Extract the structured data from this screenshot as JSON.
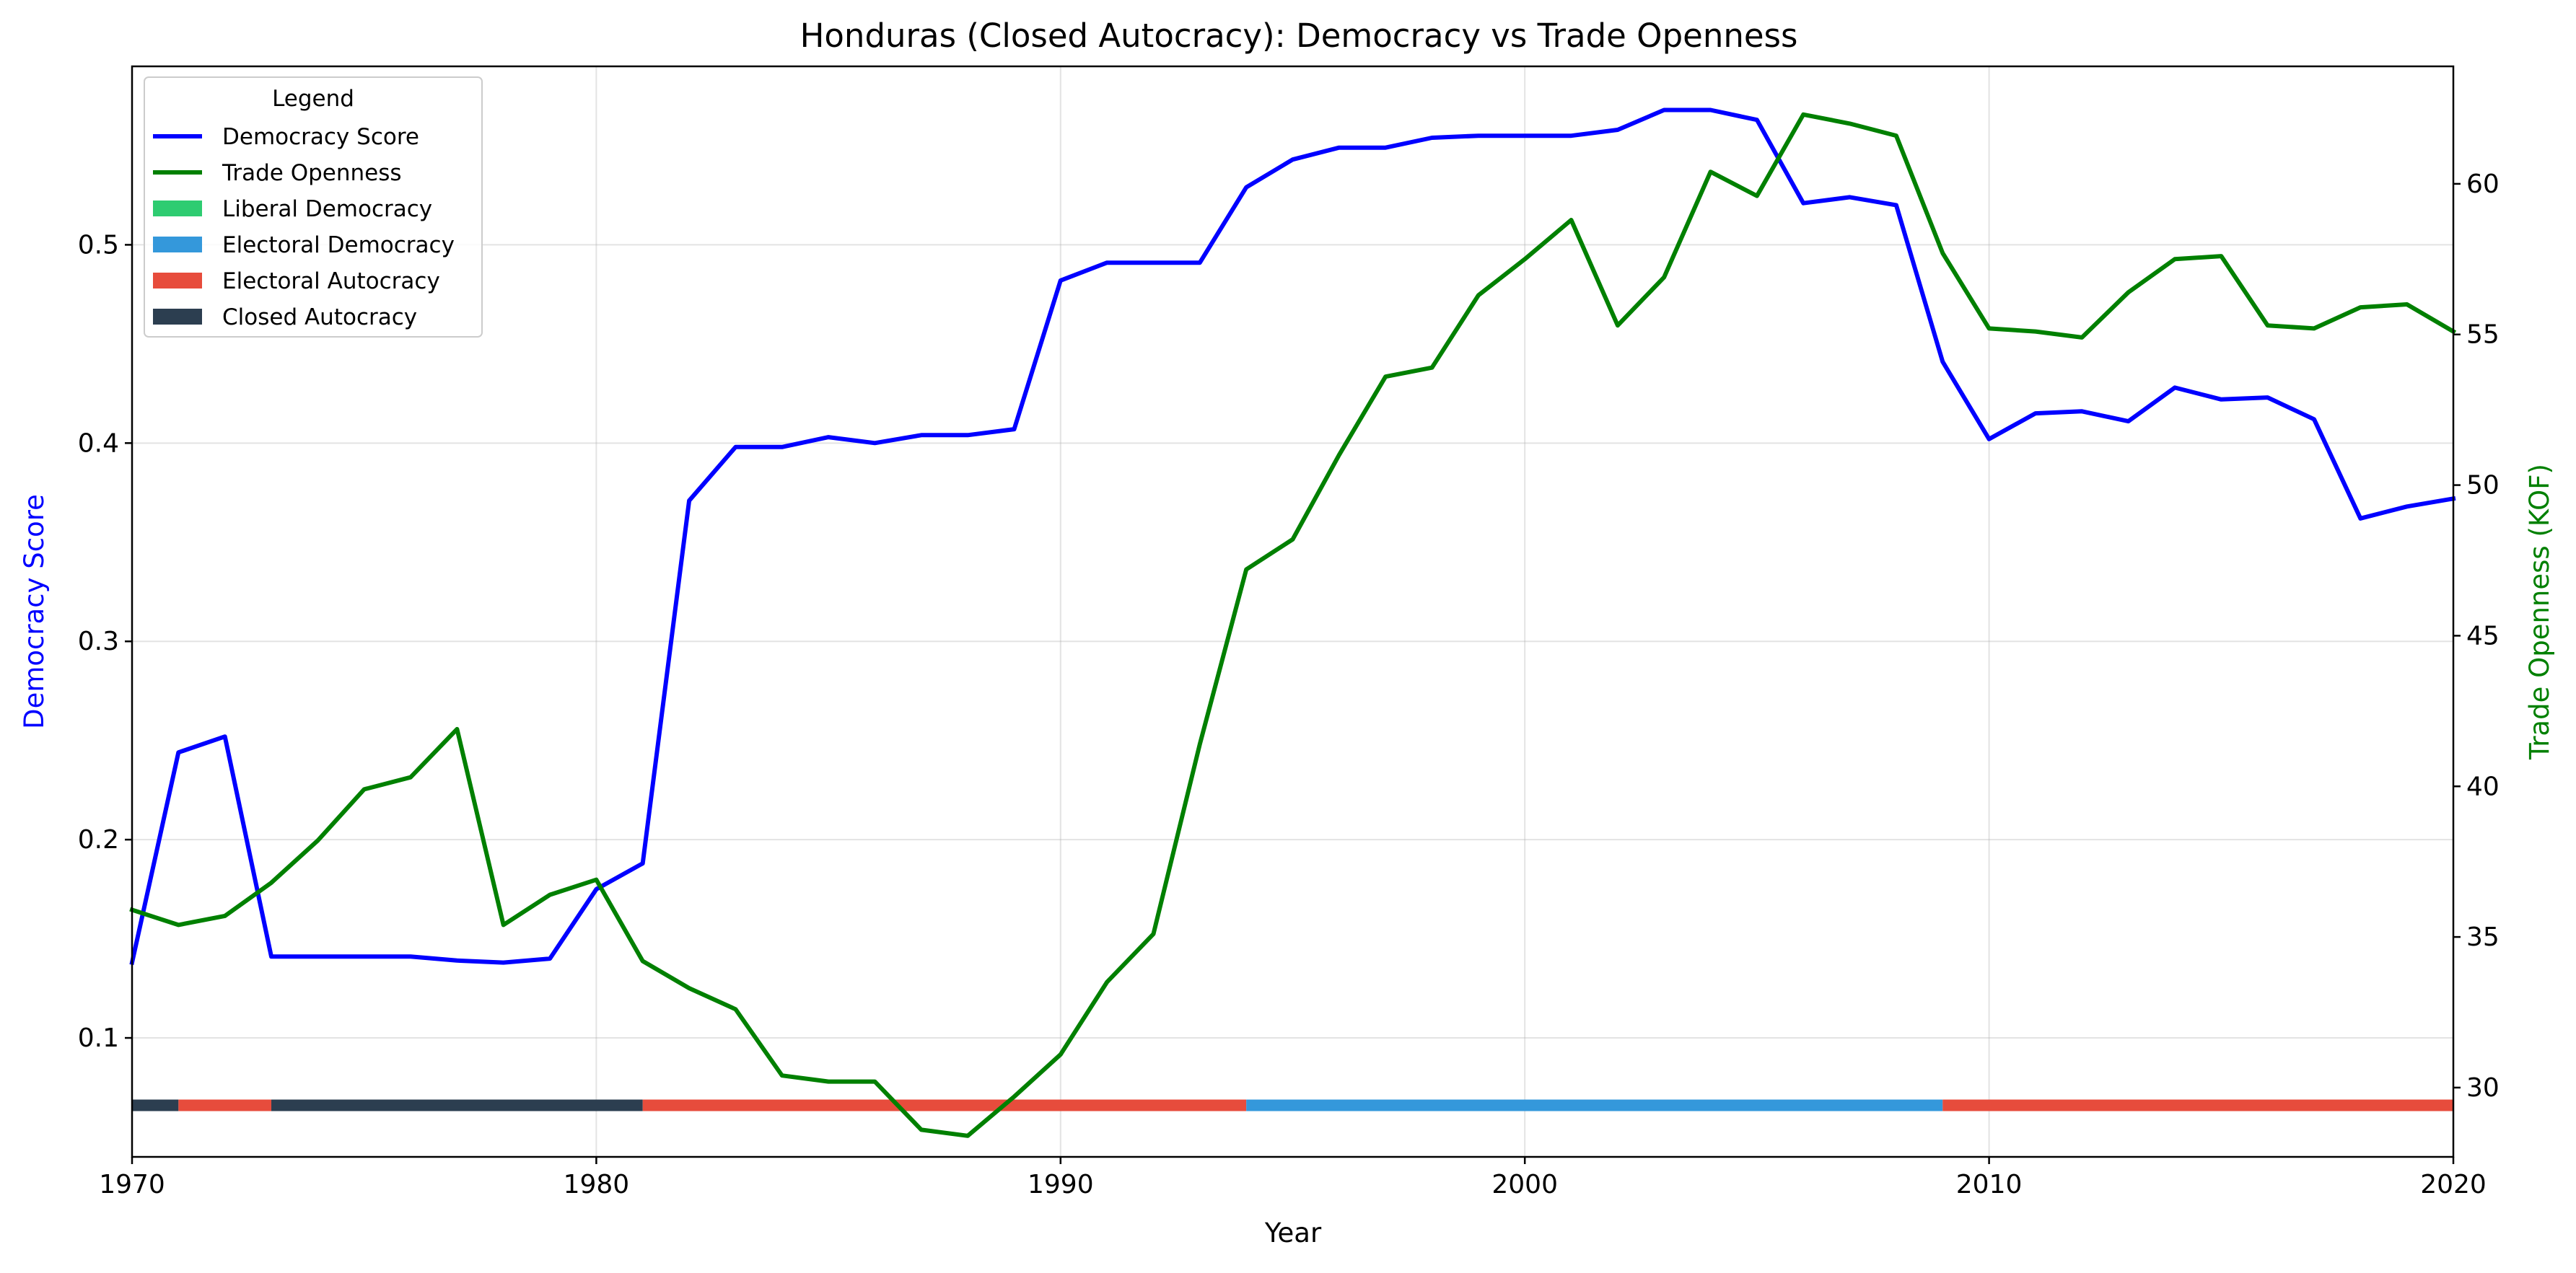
{
  "chart_data": {
    "type": "line",
    "title": "Honduras (Closed Autocracy): Democracy vs Trade Openness",
    "xlabel": "Year",
    "ylabel_left": "Democracy Score",
    "ylabel_right": "Trade Openness (KOF)",
    "xlim": [
      1970,
      2020
    ],
    "ylim_left": [
      0.04,
      0.59
    ],
    "ylim_right": [
      27.7,
      63.9
    ],
    "x_ticks": [
      1970,
      1980,
      1990,
      2000,
      2010,
      2020
    ],
    "y_left_ticks": [
      0.1,
      0.2,
      0.3,
      0.4,
      0.5
    ],
    "y_right_ticks": [
      30,
      35,
      40,
      45,
      50,
      55,
      60
    ],
    "grid": true,
    "legend": {
      "title": "Legend",
      "placement": "upper left",
      "entries": [
        {
          "label": "Democracy Score",
          "kind": "line",
          "color": "#0000ff"
        },
        {
          "label": "Trade Openness",
          "kind": "line",
          "color": "#008000"
        },
        {
          "label": "Liberal Democracy",
          "kind": "patch",
          "color": "#2ecc71"
        },
        {
          "label": "Electoral Democracy",
          "kind": "patch",
          "color": "#3498db"
        },
        {
          "label": "Electoral Autocracy",
          "kind": "patch",
          "color": "#e74c3c"
        },
        {
          "label": "Closed Autocracy",
          "kind": "patch",
          "color": "#2c3e50"
        }
      ]
    },
    "series": [
      {
        "name": "Democracy Score",
        "axis": "left",
        "color": "#0000ff",
        "x": [
          1970,
          1971,
          1972,
          1973,
          1974,
          1975,
          1976,
          1977,
          1978,
          1979,
          1980,
          1981,
          1982,
          1983,
          1984,
          1985,
          1986,
          1987,
          1988,
          1989,
          1990,
          1991,
          1992,
          1993,
          1994,
          1995,
          1996,
          1997,
          1998,
          1999,
          2000,
          2001,
          2002,
          2003,
          2004,
          2005,
          2006,
          2007,
          2008,
          2009,
          2010,
          2011,
          2012,
          2013,
          2014,
          2015,
          2016,
          2017,
          2018,
          2019,
          2020
        ],
        "values": [
          0.138,
          0.244,
          0.252,
          0.141,
          0.141,
          0.141,
          0.141,
          0.139,
          0.138,
          0.14,
          0.175,
          0.188,
          0.371,
          0.398,
          0.398,
          0.403,
          0.4,
          0.404,
          0.404,
          0.407,
          0.482,
          0.491,
          0.491,
          0.491,
          0.529,
          0.543,
          0.549,
          0.549,
          0.554,
          0.555,
          0.555,
          0.555,
          0.558,
          0.568,
          0.568,
          0.563,
          0.521,
          0.524,
          0.52,
          0.441,
          0.402,
          0.415,
          0.416,
          0.411,
          0.428,
          0.422,
          0.423,
          0.412,
          0.362,
          0.368,
          0.372
        ]
      },
      {
        "name": "Trade Openness",
        "axis": "right",
        "color": "#008000",
        "x": [
          1970,
          1971,
          1972,
          1973,
          1974,
          1975,
          1976,
          1977,
          1978,
          1979,
          1980,
          1981,
          1982,
          1983,
          1984,
          1985,
          1986,
          1987,
          1988,
          1989,
          1990,
          1991,
          1992,
          1993,
          1994,
          1995,
          1996,
          1997,
          1998,
          1999,
          2000,
          2001,
          2002,
          2003,
          2004,
          2005,
          2006,
          2007,
          2008,
          2009,
          2010,
          2011,
          2012,
          2013,
          2014,
          2015,
          2016,
          2017,
          2018,
          2019,
          2020
        ],
        "values": [
          35.9,
          35.4,
          35.7,
          36.8,
          38.2,
          39.9,
          40.3,
          41.9,
          35.4,
          36.4,
          36.9,
          34.2,
          33.3,
          32.6,
          30.4,
          30.2,
          30.2,
          28.6,
          28.4,
          29.7,
          31.1,
          33.5,
          35.1,
          41.4,
          47.2,
          48.2,
          51.0,
          53.6,
          53.9,
          56.3,
          57.5,
          58.8,
          55.3,
          56.9,
          60.4,
          59.6,
          62.3,
          62.0,
          61.6,
          57.7,
          55.2,
          55.1,
          54.9,
          56.4,
          57.5,
          57.6,
          55.3,
          55.2,
          55.9,
          56.0,
          55.1
        ]
      }
    ],
    "regime_bar": {
      "level": 0.066,
      "segments": [
        {
          "start": 1970,
          "end": 1971,
          "regime": "Closed Autocracy",
          "color": "#2c3e50"
        },
        {
          "start": 1971,
          "end": 1973,
          "regime": "Electoral Autocracy",
          "color": "#e74c3c"
        },
        {
          "start": 1973,
          "end": 1981,
          "regime": "Closed Autocracy",
          "color": "#2c3e50"
        },
        {
          "start": 1981,
          "end": 1994,
          "regime": "Electoral Autocracy",
          "color": "#e74c3c"
        },
        {
          "start": 1994,
          "end": 2009,
          "regime": "Electoral Democracy",
          "color": "#3498db"
        },
        {
          "start": 2009,
          "end": 2020,
          "regime": "Electoral Autocracy",
          "color": "#e74c3c"
        }
      ]
    }
  }
}
